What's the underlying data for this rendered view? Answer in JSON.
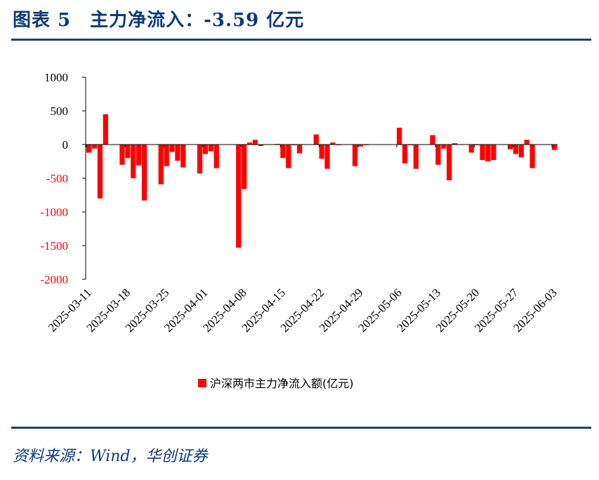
{
  "header": {
    "title": "图表 5　主力净流入：-3.59 亿元"
  },
  "footer": {
    "source": "资料来源：Wind，华创证券"
  },
  "colors": {
    "bar": "#ff0000",
    "negative_tick": "#ff0000",
    "axis": "#000000",
    "title": "#0d3a78",
    "rule": "#1f3d73"
  },
  "chart_data": {
    "type": "bar",
    "title": "",
    "xlabel": "",
    "ylabel": "",
    "ylim": [
      -2000,
      1000
    ],
    "y_ticks": [
      1000,
      500,
      0,
      -500,
      -1000,
      -1500,
      -2000
    ],
    "x_tick_labels": [
      "2025-03-11",
      "2025-03-18",
      "2025-03-25",
      "2025-04-01",
      "2025-04-08",
      "2025-04-15",
      "2025-04-22",
      "2025-04-29",
      "2025-05-06",
      "2025-05-13",
      "2025-05-20",
      "2025-05-27",
      "2025-06-03"
    ],
    "grid": false,
    "legend_position": "bottom",
    "series": [
      {
        "name": "沪深两市主力净流入额(亿元)",
        "points": [
          {
            "date": "2025-03-11",
            "value": -120
          },
          {
            "date": "2025-03-12",
            "value": -60
          },
          {
            "date": "2025-03-13",
            "value": -800
          },
          {
            "date": "2025-03-14",
            "value": 450
          },
          {
            "date": "2025-03-17",
            "value": -300
          },
          {
            "date": "2025-03-18",
            "value": -200
          },
          {
            "date": "2025-03-19",
            "value": -500
          },
          {
            "date": "2025-03-20",
            "value": -310
          },
          {
            "date": "2025-03-21",
            "value": -830
          },
          {
            "date": "2025-03-24",
            "value": -590
          },
          {
            "date": "2025-03-25",
            "value": -320
          },
          {
            "date": "2025-03-26",
            "value": -110
          },
          {
            "date": "2025-03-27",
            "value": -240
          },
          {
            "date": "2025-03-28",
            "value": -340
          },
          {
            "date": "2025-03-31",
            "value": -430
          },
          {
            "date": "2025-04-01",
            "value": -140
          },
          {
            "date": "2025-04-02",
            "value": -100
          },
          {
            "date": "2025-04-03",
            "value": -350
          },
          {
            "date": "2025-04-07",
            "value": -1530
          },
          {
            "date": "2025-04-08",
            "value": -660
          },
          {
            "date": "2025-04-09",
            "value": 30
          },
          {
            "date": "2025-04-10",
            "value": 70
          },
          {
            "date": "2025-04-11",
            "value": -20
          },
          {
            "date": "2025-04-14",
            "value": 10
          },
          {
            "date": "2025-04-15",
            "value": -200
          },
          {
            "date": "2025-04-16",
            "value": -350
          },
          {
            "date": "2025-04-17",
            "value": -10
          },
          {
            "date": "2025-04-18",
            "value": -130
          },
          {
            "date": "2025-04-21",
            "value": 150
          },
          {
            "date": "2025-04-22",
            "value": -210
          },
          {
            "date": "2025-04-23",
            "value": -360
          },
          {
            "date": "2025-04-24",
            "value": 30
          },
          {
            "date": "2025-04-25",
            "value": -10
          },
          {
            "date": "2025-04-28",
            "value": -320
          },
          {
            "date": "2025-04-29",
            "value": -30
          },
          {
            "date": "2025-04-30",
            "value": -10
          },
          {
            "date": "2025-05-06",
            "value": 250
          },
          {
            "date": "2025-05-07",
            "value": -280
          },
          {
            "date": "2025-05-08",
            "value": -10
          },
          {
            "date": "2025-05-09",
            "value": -360
          },
          {
            "date": "2025-05-12",
            "value": 140
          },
          {
            "date": "2025-05-13",
            "value": -300
          },
          {
            "date": "2025-05-14",
            "value": -60
          },
          {
            "date": "2025-05-15",
            "value": -530
          },
          {
            "date": "2025-05-16",
            "value": 20
          },
          {
            "date": "2025-05-19",
            "value": -120
          },
          {
            "date": "2025-05-20",
            "value": -10
          },
          {
            "date": "2025-05-21",
            "value": -230
          },
          {
            "date": "2025-05-22",
            "value": -250
          },
          {
            "date": "2025-05-23",
            "value": -230
          },
          {
            "date": "2025-05-26",
            "value": -70
          },
          {
            "date": "2025-05-27",
            "value": -140
          },
          {
            "date": "2025-05-28",
            "value": -190
          },
          {
            "date": "2025-05-29",
            "value": 70
          },
          {
            "date": "2025-05-30",
            "value": -350
          },
          {
            "date": "2025-06-03",
            "value": -80
          }
        ]
      }
    ]
  }
}
